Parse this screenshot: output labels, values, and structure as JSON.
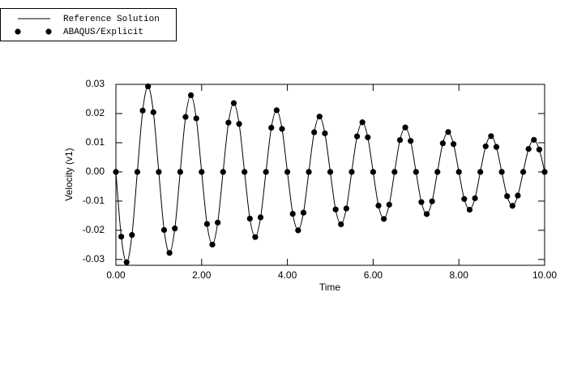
{
  "chart_data": {
    "type": "line",
    "xlabel": "Time",
    "ylabel": "Velocity (v1)",
    "legend": "top-left",
    "x": [
      0,
      0.125,
      0.25,
      0.375,
      0.5,
      0.625,
      0.75,
      0.875,
      1,
      1.125,
      1.25,
      1.375,
      1.5,
      1.625,
      1.75,
      1.875,
      2,
      2.125,
      2.25,
      2.375,
      2.5,
      2.625,
      2.75,
      2.875,
      3,
      3.125,
      3.25,
      3.375,
      3.5,
      3.625,
      3.75,
      3.875,
      4,
      4.125,
      4.25,
      4.375,
      4.5,
      4.625,
      4.75,
      4.875,
      5,
      5.125,
      5.25,
      5.375,
      5.5,
      5.625,
      5.75,
      5.875,
      6,
      6.125,
      6.25,
      6.375,
      6.5,
      6.625,
      6.75,
      6.875,
      7,
      7.125,
      7.25,
      7.375,
      7.5,
      7.625,
      7.75,
      7.875,
      8,
      8.125,
      8.25,
      8.375,
      8.5,
      8.625,
      8.75,
      8.875,
      9,
      9.125,
      9.25,
      9.375,
      9.5,
      9.625,
      9.75,
      9.875,
      10
    ],
    "series": [
      {
        "name": "Reference Solution",
        "style": "line",
        "color": "#000000",
        "values": [
          0,
          -0.02218,
          -0.03095,
          -0.02159,
          0,
          0.02101,
          0.02931,
          0.02044,
          0,
          -0.01989,
          -0.02775,
          -0.01936,
          0,
          0.01884,
          0.02628,
          0.01834,
          0,
          -0.01784,
          -0.02489,
          -0.01736,
          0,
          0.01689,
          0.02357,
          0.01644,
          0,
          -0.016,
          -0.02232,
          -0.01557,
          0,
          0.01515,
          0.02114,
          0.01474,
          0,
          -0.01435,
          -0.02002,
          -0.01397,
          0,
          0.01359,
          0.01896,
          0.01322,
          0,
          -0.01287,
          -0.01795,
          -0.01252,
          0,
          0.01218,
          0.017,
          0.01186,
          0,
          -0.01154,
          -0.0161,
          -0.01123,
          0,
          0.01092,
          0.01524,
          0.01063,
          0,
          -0.01034,
          -0.01444,
          -0.01007,
          0,
          0.0098,
          0.01367,
          0.00954,
          0,
          -0.00928,
          -0.01295,
          -0.00903,
          0,
          0.00879,
          0.01226,
          0.00855,
          0,
          -0.00832,
          -0.01161,
          -0.0081,
          0,
          0.00788,
          0.01099,
          0.00767,
          0
        ]
      },
      {
        "name": "ABAQUS/Explicit",
        "style": "markers",
        "color": "#000000",
        "values": [
          0,
          -0.02218,
          -0.03095,
          -0.02159,
          0,
          0.02101,
          0.02931,
          0.02044,
          0,
          -0.01989,
          -0.02775,
          -0.01936,
          0,
          0.01884,
          0.02628,
          0.01834,
          0,
          -0.01784,
          -0.02489,
          -0.01736,
          0,
          0.01689,
          0.02357,
          0.01644,
          0,
          -0.016,
          -0.02232,
          -0.01557,
          0,
          0.01515,
          0.02114,
          0.01474,
          0,
          -0.01435,
          -0.02002,
          -0.01397,
          0,
          0.01359,
          0.01896,
          0.01322,
          0,
          -0.01287,
          -0.01795,
          -0.01252,
          0,
          0.01218,
          0.017,
          0.01186,
          0,
          -0.01154,
          -0.0161,
          -0.01123,
          0,
          0.01092,
          0.01524,
          0.01063,
          0,
          -0.01034,
          -0.01444,
          -0.01007,
          0,
          0.0098,
          0.01367,
          0.00954,
          0,
          -0.00928,
          -0.01295,
          -0.00903,
          0,
          0.00879,
          0.01226,
          0.00855,
          0,
          -0.00832,
          -0.01161,
          -0.0081,
          0,
          0.00788,
          0.01099,
          0.00767,
          0
        ]
      }
    ],
    "xlim": [
      0,
      10
    ],
    "xticks": [
      {
        "value": 0,
        "label": "0.00"
      },
      {
        "value": 2,
        "label": "2.00"
      },
      {
        "value": 4,
        "label": "4.00"
      },
      {
        "value": 6,
        "label": "6.00"
      },
      {
        "value": 8,
        "label": "8.00"
      },
      {
        "value": 10,
        "label": "10.00"
      }
    ],
    "ylim": [
      -0.032,
      0.03
    ],
    "yticks": [
      -0.03,
      -0.02,
      -0.01,
      {
        "value": 0,
        "label": "0.00"
      },
      0.01,
      0.02,
      0.03
    ]
  }
}
